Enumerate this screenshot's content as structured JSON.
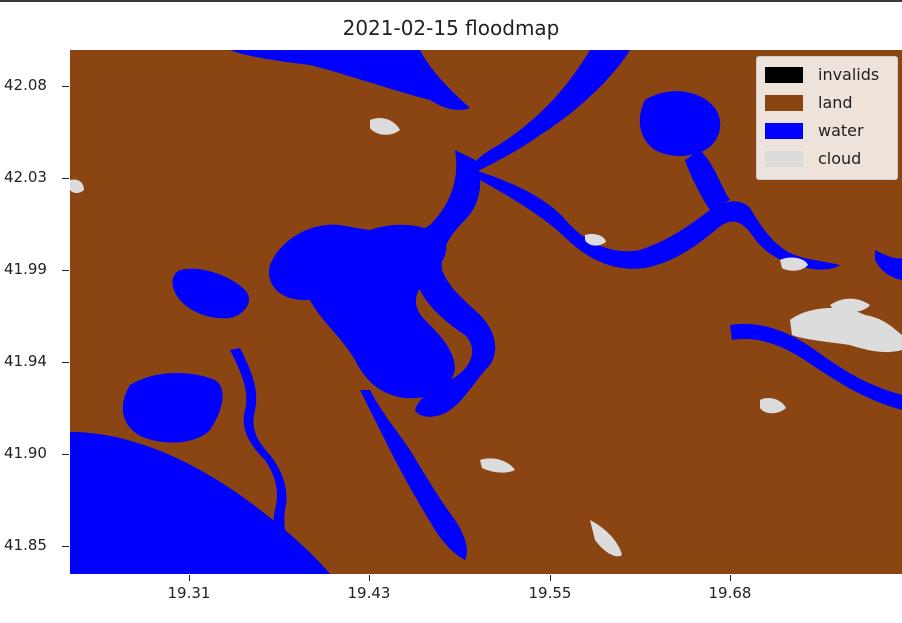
{
  "title": "2021-02-15 floodmap",
  "y_ticks": [
    "42.08",
    "42.03",
    "41.99",
    "41.94",
    "41.90",
    "41.85"
  ],
  "x_ticks": [
    "19.31",
    "19.43",
    "19.55",
    "19.68"
  ],
  "legend": [
    {
      "label": "invalids",
      "color": "#000000"
    },
    {
      "label": "land",
      "color": "#8b4513"
    },
    {
      "label": "water",
      "color": "#0000ff"
    },
    {
      "label": "cloud",
      "color": "#dcdcdc"
    }
  ],
  "colors": {
    "land": "#8b4513",
    "water": "#0000ff",
    "cloud": "#dcdcdc",
    "invalids": "#000000"
  },
  "legend_placement": "top-right"
}
